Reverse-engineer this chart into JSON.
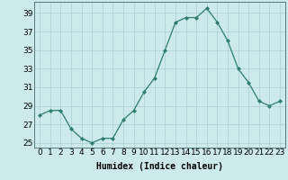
{
  "x": [
    0,
    1,
    2,
    3,
    4,
    5,
    6,
    7,
    8,
    9,
    10,
    11,
    12,
    13,
    14,
    15,
    16,
    17,
    18,
    19,
    20,
    21,
    22,
    23
  ],
  "y": [
    28.0,
    28.5,
    28.5,
    26.5,
    25.5,
    25.0,
    25.5,
    25.5,
    27.5,
    28.5,
    30.5,
    32.0,
    35.0,
    38.0,
    38.5,
    38.5,
    39.5,
    38.0,
    36.0,
    33.0,
    31.5,
    29.5,
    29.0,
    29.5
  ],
  "line_color": "#2e7d6e",
  "marker": "D",
  "marker_size": 2,
  "bg_color": "#cce9ec",
  "grid_color": "#aacdd2",
  "xlabel": "Humidex (Indice chaleur)",
  "ylim": [
    24.5,
    40.2
  ],
  "xlim": [
    -0.5,
    23.5
  ],
  "yticks": [
    25,
    27,
    29,
    31,
    33,
    35,
    37,
    39
  ],
  "xlabel_fontsize": 7,
  "tick_fontsize": 6.5
}
